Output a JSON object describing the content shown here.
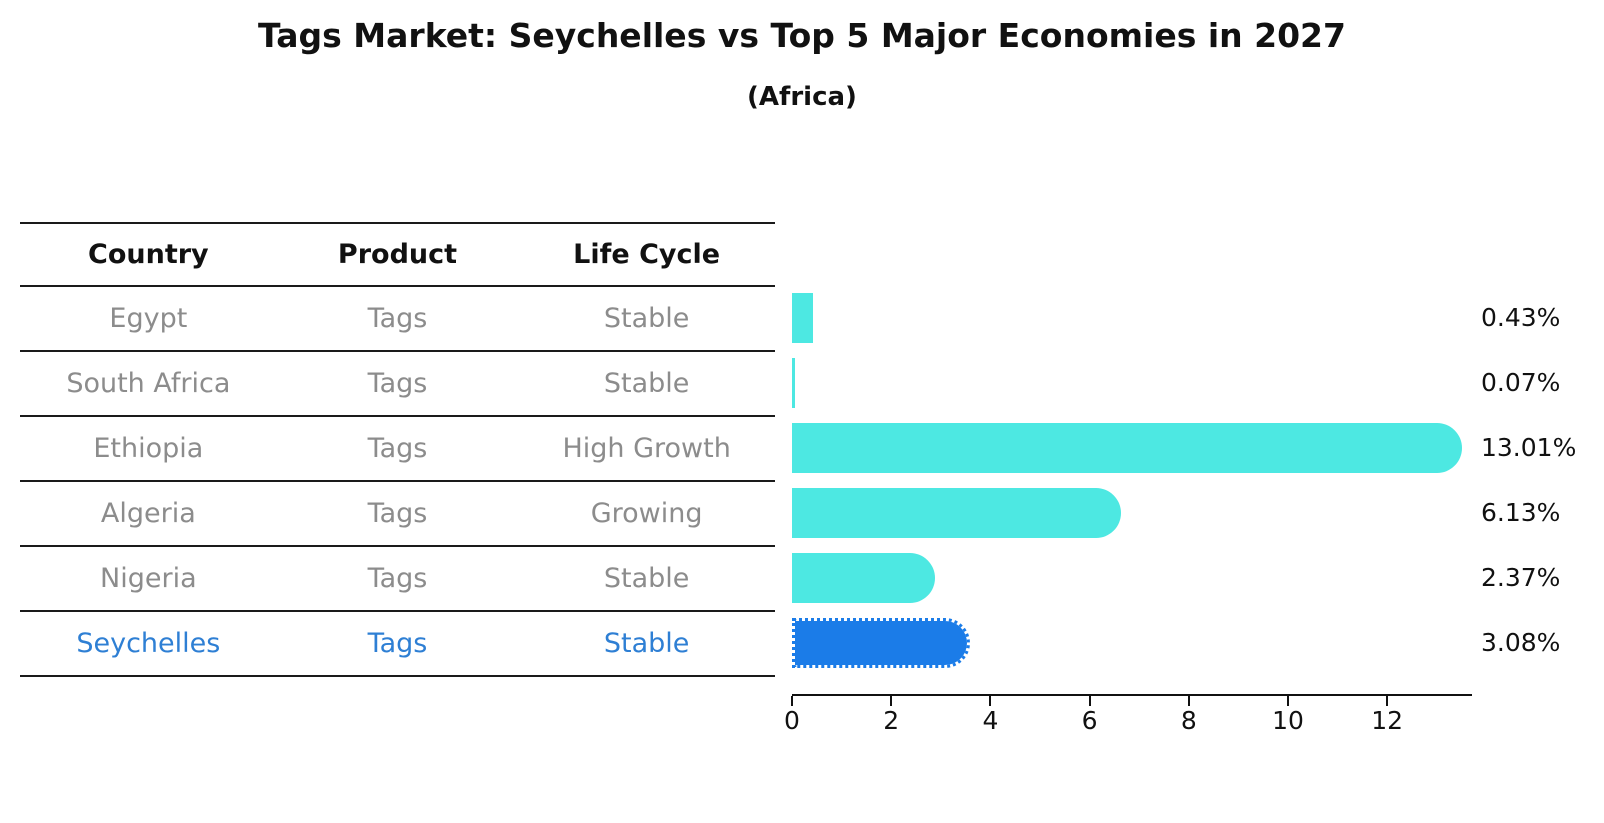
{
  "title": "Tags Market: Seychelles vs Top 5 Major Economies in 2027",
  "subtitle": "(Africa)",
  "table": {
    "headers": [
      "Country",
      "Product",
      "Life Cycle"
    ]
  },
  "chart_data": {
    "type": "bar",
    "orientation": "horizontal",
    "title": "Tags Market: Seychelles vs Top 5 Major Economies in 2027",
    "subtitle": "(Africa)",
    "xlabel": "",
    "ylabel": "",
    "xlim": [
      0,
      13.7
    ],
    "x_ticks": [
      0,
      2,
      4,
      6,
      8,
      10,
      12
    ],
    "grid": false,
    "legend": false,
    "categories": [
      "Egypt",
      "South Africa",
      "Ethiopia",
      "Algeria",
      "Nigeria",
      "Seychelles"
    ],
    "values": [
      0.43,
      0.07,
      13.01,
      6.13,
      2.37,
      3.08
    ],
    "rows": [
      {
        "country": "Egypt",
        "product": "Tags",
        "life_cycle": "Stable",
        "value": 0.43,
        "value_label": "0.43%",
        "highlight": false
      },
      {
        "country": "South Africa",
        "product": "Tags",
        "life_cycle": "Stable",
        "value": 0.07,
        "value_label": "0.07%",
        "highlight": false
      },
      {
        "country": "Ethiopia",
        "product": "Tags",
        "life_cycle": "High Growth",
        "value": 13.01,
        "value_label": "13.01%",
        "highlight": false
      },
      {
        "country": "Algeria",
        "product": "Tags",
        "life_cycle": "Growing",
        "value": 6.13,
        "value_label": "6.13%",
        "highlight": false
      },
      {
        "country": "Nigeria",
        "product": "Tags",
        "life_cycle": "Stable",
        "value": 2.37,
        "value_label": "2.37%",
        "highlight": false
      },
      {
        "country": "Seychelles",
        "product": "Tags",
        "life_cycle": "Stable",
        "value": 3.08,
        "value_label": "3.08%",
        "highlight": true
      }
    ],
    "colors": {
      "bar": "#4de8e2",
      "highlight_bar": "#1b7ce8",
      "highlight_text": "#2e7fd4",
      "row_text": "#8c8c8c",
      "header_text": "#111111",
      "axis": "#111111"
    }
  }
}
